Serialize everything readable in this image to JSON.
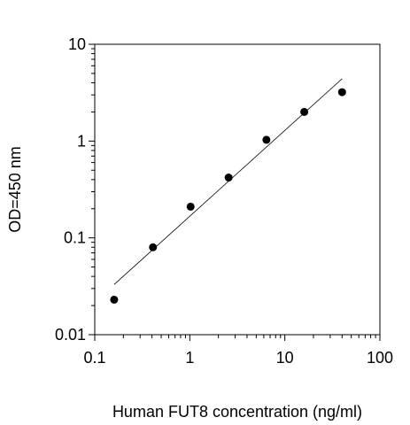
{
  "chart_data": {
    "type": "scatter",
    "title": "",
    "xlabel": "Human FUT8 concentration (ng/ml)",
    "ylabel": "OD=450 nm",
    "xscale": "log",
    "yscale": "log",
    "xlim": [
      0.1,
      100
    ],
    "ylim": [
      0.01,
      10
    ],
    "x_ticks": [
      "0.1",
      "1",
      "10",
      "100"
    ],
    "y_ticks": [
      "0.01",
      "0.1",
      "1",
      "10"
    ],
    "grid": false,
    "legend": "none",
    "series": [
      {
        "x": [
          0.16,
          0.41,
          1.02,
          2.56,
          6.4,
          16,
          40
        ],
        "y": [
          0.023,
          0.08,
          0.21,
          0.42,
          1.03,
          2.0,
          3.2
        ]
      }
    ],
    "fit_line": {
      "x": [
        0.16,
        40
      ],
      "y": [
        0.033,
        4.4
      ]
    },
    "colors": {
      "points": "#000000",
      "line": "#000000",
      "axes": "#000000"
    }
  }
}
